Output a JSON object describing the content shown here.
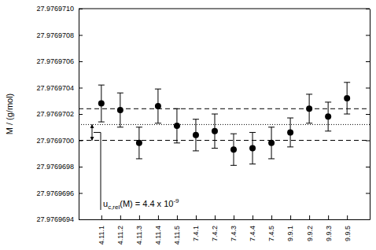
{
  "chart_data": {
    "type": "scatter",
    "y_label": "M / (g/mol)",
    "categories": [
      "4.11.1",
      "4.11.2",
      "4.11.3",
      "4.11.4",
      "4.11.5",
      "7.4.1",
      "7.4.2",
      "7.4.3",
      "7.4.4",
      "7.4.5",
      "9.9.1",
      "9.9.2",
      "9.9.3",
      "9.9.5"
    ],
    "values": [
      27.97697028,
      27.97697023,
      27.97696998,
      27.97697026,
      27.97697011,
      27.97697004,
      27.97697007,
      27.97696993,
      27.97696994,
      27.97696998,
      27.97697006,
      27.97697024,
      27.97697018,
      27.97697032
    ],
    "errors": [
      1.4e-07,
      1.3e-07,
      1.2e-07,
      1.3e-07,
      1.3e-07,
      1.2e-07,
      1.3e-07,
      1.2e-07,
      1.2e-07,
      1.2e-07,
      1.1e-07,
      1.1e-07,
      1.1e-07,
      1.2e-07
    ],
    "color": "#000000",
    "marker": "circle",
    "ylim": [
      27.9769694,
      27.976971
    ],
    "yticks": [
      {
        "value": 27.9769694,
        "label": "27.9769694"
      },
      {
        "value": 27.9769696,
        "label": "27.9769696"
      },
      {
        "value": 27.9769698,
        "label": "27.9769698"
      },
      {
        "value": 27.97697,
        "label": "27.9769700"
      },
      {
        "value": 27.9769702,
        "label": "27.9769702"
      },
      {
        "value": 27.9769704,
        "label": "27.9769704"
      },
      {
        "value": 27.9769706,
        "label": "27.9769706"
      },
      {
        "value": 27.9769708,
        "label": "27.9769708"
      },
      {
        "value": 27.976971,
        "label": "27.9769710"
      }
    ],
    "reference_lines": {
      "mean": 27.97697012,
      "upper": 27.97697024,
      "lower": 27.97697
    },
    "annotation": {
      "symbol": "u",
      "subscript": "c,rel",
      "text": "(M) = 4.4 x 10",
      "superscript": "-9"
    }
  }
}
